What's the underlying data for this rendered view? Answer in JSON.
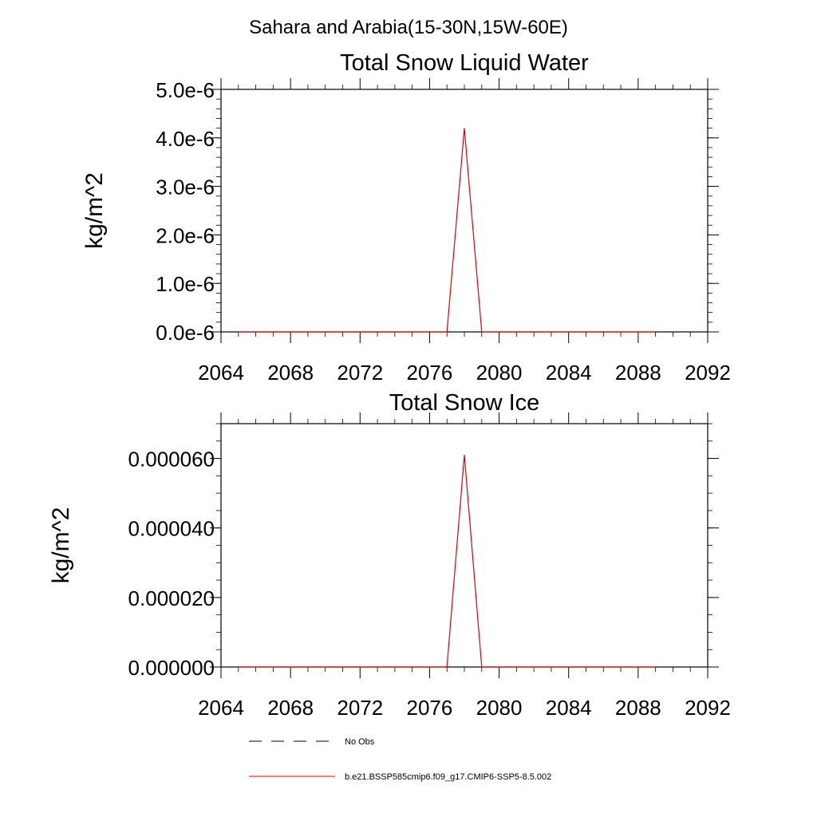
{
  "figure": {
    "title": "Sahara and Arabia(15-30N,15W-60E)"
  },
  "chart_data": [
    {
      "type": "line",
      "title": "Total Snow Liquid Water",
      "xlabel": "",
      "ylabel": "kg/m^2",
      "xlim": [
        2064,
        2092
      ],
      "ylim": [
        0,
        5e-06
      ],
      "x_ticks": [
        2064,
        2068,
        2072,
        2076,
        2080,
        2084,
        2088,
        2092
      ],
      "x_tick_labels": [
        "2064",
        "2068",
        "2072",
        "2076",
        "2080",
        "2084",
        "2088",
        "2092"
      ],
      "y_ticks": [
        0,
        1e-06,
        2e-06,
        3e-06,
        4e-06,
        5e-06
      ],
      "y_tick_labels": [
        "0.0e-6",
        "1.0e-6",
        "2.0e-6",
        "3.0e-6",
        "4.0e-6",
        "5.0e-6"
      ],
      "grid": false,
      "series": [
        {
          "name": "b.e21.BSSP585cmip6.f09_g17.CMIP6-SSP5-8.5.002",
          "color": "#e00000",
          "x": [
            2065,
            2066,
            2067,
            2068,
            2069,
            2070,
            2071,
            2072,
            2073,
            2074,
            2075,
            2076,
            2077,
            2078,
            2079,
            2080,
            2081,
            2082,
            2083,
            2084,
            2085,
            2086,
            2087,
            2088,
            2089
          ],
          "y": [
            0,
            0,
            0,
            0,
            0,
            0,
            0,
            0,
            0,
            0,
            0,
            0,
            0,
            4.2e-06,
            0,
            0,
            0,
            0,
            0,
            0,
            0,
            0,
            0,
            0,
            0
          ]
        }
      ]
    },
    {
      "type": "line",
      "title": "Total Snow Ice",
      "xlabel": "",
      "ylabel": "kg/m^2",
      "xlim": [
        2064,
        2092
      ],
      "ylim": [
        0,
        7e-05
      ],
      "x_ticks": [
        2064,
        2068,
        2072,
        2076,
        2080,
        2084,
        2088,
        2092
      ],
      "x_tick_labels": [
        "2064",
        "2068",
        "2072",
        "2076",
        "2080",
        "2084",
        "2088",
        "2092"
      ],
      "y_ticks": [
        0,
        2e-05,
        4e-05,
        6e-05
      ],
      "y_tick_labels": [
        "0.000000",
        "0.000020",
        "0.000040",
        "0.000060"
      ],
      "grid": false,
      "series": [
        {
          "name": "b.e21.BSSP585cmip6.f09_g17.CMIP6-SSP5-8.5.002",
          "color": "#e00000",
          "x": [
            2065,
            2066,
            2067,
            2068,
            2069,
            2070,
            2071,
            2072,
            2073,
            2074,
            2075,
            2076,
            2077,
            2078,
            2079,
            2080,
            2081,
            2082,
            2083,
            2084,
            2085,
            2086,
            2087,
            2088,
            2089
          ],
          "y": [
            0,
            0,
            0,
            0,
            0,
            0,
            0,
            0,
            0,
            0,
            0,
            0,
            0,
            6.1e-05,
            0,
            0,
            0,
            0,
            0,
            0,
            0,
            0,
            0,
            0,
            0
          ]
        }
      ]
    }
  ],
  "legend": {
    "placement": "bottom",
    "items": [
      {
        "label": "No Obs",
        "color": "#000000",
        "style": "dashed"
      },
      {
        "label": "b.e21.BSSP585cmip6.f09_g17.CMIP6-SSP5-8.5.002",
        "color": "#e00000",
        "style": "solid"
      }
    ]
  }
}
